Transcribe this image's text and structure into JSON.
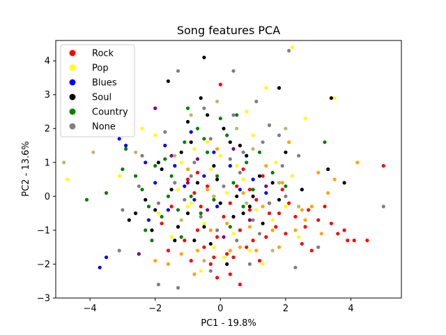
{
  "chart_data": {
    "type": "scatter",
    "title": "Song features PCA",
    "xlabel": "PC1 - 19.8%",
    "ylabel": "PC2 - 13.6%",
    "xlim": [
      -5.05,
      5.55
    ],
    "ylim": [
      -3.0,
      4.6
    ],
    "xticks": [
      "−4",
      "−2",
      "0",
      "2",
      "4"
    ],
    "xtick_values": [
      -4,
      -2,
      0,
      2,
      4
    ],
    "yticks": [
      "−3",
      "−2",
      "−1",
      "0",
      "1",
      "2",
      "3",
      "4"
    ],
    "ytick_values": [
      -3,
      -2,
      -1,
      0,
      1,
      2,
      3,
      4
    ],
    "legend_position": "top-left",
    "legend": [
      {
        "label": "Rock",
        "color": "#ff0000"
      },
      {
        "label": "Pop",
        "color": "#ffff00"
      },
      {
        "label": "Blues",
        "color": "#0000ff"
      },
      {
        "label": "Soul",
        "color": "#000000"
      },
      {
        "label": "Country",
        "color": "#008000"
      },
      {
        "label": "None",
        "color": "#808080"
      }
    ],
    "extra_colors": {
      "orange": "#ffa500",
      "purple": "#800080",
      "olive": "#bdb76b"
    },
    "series": [
      {
        "name": "Rock",
        "color": "#ff0000",
        "points": [
          [
            5.0,
            0.9
          ],
          [
            4.5,
            -1.3
          ],
          [
            4.1,
            -1.3
          ],
          [
            3.9,
            -1.3
          ],
          [
            3.8,
            -1.0
          ],
          [
            3.4,
            -0.8
          ],
          [
            3.0,
            -0.7
          ],
          [
            2.7,
            -0.4
          ],
          [
            2.5,
            -1.4
          ],
          [
            2.3,
            -0.6
          ],
          [
            2.1,
            -0.2
          ],
          [
            1.9,
            0.2
          ],
          [
            1.7,
            -0.9
          ],
          [
            1.5,
            -0.5
          ],
          [
            1.2,
            -1.9
          ],
          [
            1.0,
            -1.3
          ],
          [
            0.9,
            -0.4
          ],
          [
            0.8,
            -1.5
          ],
          [
            0.6,
            -1.0
          ],
          [
            0.4,
            -1.8
          ],
          [
            0.3,
            -2.3
          ],
          [
            0.2,
            -1.7
          ],
          [
            0.1,
            -0.6
          ],
          [
            -0.1,
            -1.2
          ],
          [
            -0.2,
            -1.8
          ],
          [
            -0.3,
            -2.0
          ],
          [
            -0.5,
            -1.5
          ],
          [
            -0.7,
            -1.0
          ],
          [
            -0.9,
            -1.9
          ],
          [
            -1.1,
            -1.3
          ],
          [
            -1.3,
            -0.9
          ],
          [
            -1.6,
            -1.6
          ],
          [
            -1.8,
            -0.8
          ],
          [
            0.0,
            3.3
          ],
          [
            0.5,
            0.3
          ],
          [
            0.7,
            0.8
          ],
          [
            0.9,
            0.2
          ],
          [
            1.1,
            -0.1
          ],
          [
            1.3,
            0.6
          ],
          [
            1.5,
            -0.2
          ],
          [
            -0.4,
            0.3
          ],
          [
            -0.6,
            -0.3
          ],
          [
            -0.8,
            0.1
          ],
          [
            -1.0,
            0.5
          ],
          [
            1.8,
            -0.5
          ],
          [
            2.0,
            -1.1
          ],
          [
            2.6,
            -0.9
          ],
          [
            3.2,
            -0.3
          ],
          [
            0.3,
            -0.2
          ],
          [
            -0.2,
            0.0
          ],
          [
            0.6,
            -2.6
          ],
          [
            -0.1,
            -2.4
          ],
          [
            2.8,
            -1.6
          ],
          [
            3.6,
            -1.1
          ],
          [
            1.4,
            -1.2
          ],
          [
            -1.5,
            -0.3
          ],
          [
            -0.7,
            0.7
          ]
        ]
      },
      {
        "name": "Pop",
        "color": "#ffff00",
        "points": [
          [
            2.2,
            4.4
          ],
          [
            3.5,
            2.9
          ],
          [
            2.6,
            2.3
          ],
          [
            1.4,
            3.2
          ],
          [
            0.8,
            2.5
          ],
          [
            -2.4,
            2.0
          ],
          [
            -2.0,
            1.8
          ],
          [
            -3.1,
            0.6
          ],
          [
            -4.7,
            0.5
          ],
          [
            -1.2,
            1.0
          ],
          [
            -0.8,
            1.4
          ],
          [
            -0.3,
            0.8
          ],
          [
            0.2,
            0.1
          ],
          [
            0.7,
            0.5
          ],
          [
            1.1,
            -0.4
          ],
          [
            1.6,
            -0.7
          ],
          [
            2.0,
            -0.3
          ],
          [
            2.4,
            -1.2
          ],
          [
            -0.5,
            -0.8
          ],
          [
            -1.0,
            -0.3
          ],
          [
            -1.5,
            -1.2
          ],
          [
            -1.9,
            -0.5
          ],
          [
            0.4,
            -1.1
          ],
          [
            0.9,
            -1.6
          ],
          [
            1.3,
            -2.0
          ],
          [
            -0.2,
            -1.5
          ],
          [
            -0.6,
            -2.2
          ],
          [
            0.1,
            -1.8
          ],
          [
            1.7,
            1.0
          ],
          [
            2.2,
            0.6
          ],
          [
            -1.3,
            0.2
          ],
          [
            -0.9,
            -0.2
          ],
          [
            0.5,
            0.9
          ],
          [
            0.0,
            1.2
          ],
          [
            -0.4,
            1.6
          ],
          [
            1.0,
            1.8
          ]
        ]
      },
      {
        "name": "Blues",
        "color": "#0000ff",
        "points": [
          [
            -3.7,
            -2.1
          ],
          [
            -3.5,
            -1.8
          ],
          [
            -3.1,
            1.7
          ],
          [
            -2.9,
            1.5
          ],
          [
            -2.3,
            1.0
          ],
          [
            -2.0,
            0.4
          ],
          [
            -1.7,
            1.5
          ],
          [
            -1.4,
            0.9
          ],
          [
            -1.1,
            0.3
          ],
          [
            -0.8,
            -0.1
          ],
          [
            -0.5,
            0.6
          ],
          [
            -0.2,
            1.3
          ],
          [
            0.3,
            0.9
          ],
          [
            0.6,
            0.2
          ],
          [
            1.0,
            0.5
          ],
          [
            -1.6,
            -0.4
          ],
          [
            -2.2,
            -0.7
          ],
          [
            -0.9,
            1.9
          ],
          [
            1.4,
            0.1
          ],
          [
            -0.1,
            -0.3
          ]
        ]
      },
      {
        "name": "Soul",
        "color": "#000000",
        "points": [
          [
            -0.5,
            4.1
          ],
          [
            -1.6,
            3.4
          ],
          [
            -0.6,
            2.9
          ],
          [
            1.8,
            3.2
          ],
          [
            3.4,
            2.9
          ],
          [
            3.8,
            0.4
          ],
          [
            3.3,
            0.8
          ],
          [
            2.5,
            0.2
          ],
          [
            1.8,
            -0.1
          ],
          [
            1.2,
            0.6
          ],
          [
            0.8,
            1.2
          ],
          [
            0.3,
            1.6
          ],
          [
            -0.2,
            0.9
          ],
          [
            -0.7,
            0.4
          ],
          [
            -1.2,
            1.3
          ],
          [
            -1.5,
            0.2
          ],
          [
            -1.8,
            0.8
          ],
          [
            -2.0,
            -0.4
          ],
          [
            -2.3,
            -0.1
          ],
          [
            -2.6,
            -0.5
          ],
          [
            -2.8,
            -0.7
          ],
          [
            -1.0,
            -0.5
          ],
          [
            -0.5,
            -0.9
          ],
          [
            0.0,
            -0.2
          ],
          [
            0.4,
            -0.6
          ],
          [
            0.9,
            -0.3
          ],
          [
            1.3,
            -0.8
          ],
          [
            -1.3,
            -0.9
          ],
          [
            -0.3,
            -1.4
          ],
          [
            0.2,
            -2.0
          ],
          [
            -0.9,
            1.6
          ],
          [
            -0.4,
            2.4
          ],
          [
            0.1,
            2.0
          ],
          [
            0.6,
            1.5
          ],
          [
            1.0,
            0.0
          ],
          [
            -1.4,
            -1.3
          ],
          [
            -2.1,
            -1.0
          ],
          [
            0.7,
            -0.5
          ],
          [
            -0.8,
            -1.3
          ],
          [
            1.6,
            0.4
          ],
          [
            -1.0,
            2.2
          ],
          [
            2.0,
            1.3
          ],
          [
            -0.1,
            0.5
          ],
          [
            0.5,
            0.0
          ],
          [
            -1.9,
            1.0
          ]
        ]
      },
      {
        "name": "Country",
        "color": "#008000",
        "points": [
          [
            -4.1,
            -0.1
          ],
          [
            -3.5,
            0.1
          ],
          [
            -3.0,
            0.8
          ],
          [
            -2.9,
            1.4
          ],
          [
            -2.6,
            0.6
          ],
          [
            -2.4,
            0.2
          ],
          [
            -2.2,
            -0.3
          ],
          [
            -2.0,
            0.9
          ],
          [
            -1.7,
            1.1
          ],
          [
            -1.5,
            0.6
          ],
          [
            -1.3,
            -0.4
          ],
          [
            -1.1,
            1.6
          ],
          [
            -0.9,
            0.0
          ],
          [
            -0.7,
            2.0
          ],
          [
            -0.4,
            1.3
          ],
          [
            -0.1,
            0.6
          ],
          [
            0.2,
            1.8
          ],
          [
            0.5,
            2.4
          ],
          [
            0.8,
            1.0
          ],
          [
            1.2,
            1.3
          ],
          [
            1.6,
            0.7
          ],
          [
            2.0,
            0.3
          ],
          [
            3.2,
            1.6
          ],
          [
            -2.3,
            -1.0
          ],
          [
            -1.8,
            -0.6
          ],
          [
            -1.2,
            -1.2
          ],
          [
            -0.6,
            -0.5
          ],
          [
            -0.2,
            -0.1
          ],
          [
            0.3,
            -0.9
          ],
          [
            0.7,
            -0.3
          ],
          [
            1.0,
            0.2
          ],
          [
            -1.0,
            2.6
          ],
          [
            -0.5,
            1.7
          ],
          [
            0.0,
            2.3
          ],
          [
            0.4,
            0.4
          ],
          [
            -2.1,
            -1.3
          ],
          [
            -1.6,
            0.0
          ]
        ]
      },
      {
        "name": "None",
        "color": "#808080",
        "points": [
          [
            5.0,
            -0.3
          ],
          [
            2.1,
            4.3
          ],
          [
            -1.3,
            3.7
          ],
          [
            0.4,
            3.7
          ],
          [
            -3.1,
            -1.6
          ],
          [
            -1.3,
            -2.7
          ],
          [
            -1.9,
            -2.6
          ],
          [
            2.3,
            -2.1
          ],
          [
            3.0,
            -1.5
          ],
          [
            2.4,
            1.2
          ],
          [
            1.8,
            1.8
          ],
          [
            1.5,
            2.1
          ],
          [
            1.1,
            2.8
          ],
          [
            0.4,
            2.4
          ],
          [
            -0.3,
            1.7
          ],
          [
            -0.8,
            1.0
          ],
          [
            -1.4,
            0.4
          ],
          [
            -1.9,
            -0.2
          ],
          [
            -2.5,
            0.3
          ],
          [
            -3.0,
            -0.4
          ],
          [
            -0.6,
            -0.6
          ],
          [
            -0.1,
            -1.0
          ],
          [
            0.5,
            -1.3
          ],
          [
            1.0,
            -0.7
          ],
          [
            1.5,
            -0.2
          ],
          [
            2.0,
            0.0
          ],
          [
            -0.5,
            2.6
          ],
          [
            0.7,
            1.3
          ],
          [
            1.3,
            1.6
          ],
          [
            -1.1,
            -0.1
          ],
          [
            0.1,
            0.3
          ],
          [
            0.6,
            0.7
          ],
          [
            1.2,
            -1.1
          ],
          [
            -0.3,
            -2.2
          ],
          [
            0.9,
            -2.0
          ],
          [
            -2.4,
            1.2
          ],
          [
            -1.7,
            1.9
          ],
          [
            1.9,
            0.9
          ],
          [
            -0.9,
            0.6
          ],
          [
            0.3,
            1.1
          ]
        ]
      },
      {
        "name": "",
        "color": "#ffa500",
        "points": [
          [
            4.2,
            1.0
          ],
          [
            3.5,
            0.5
          ],
          [
            3.0,
            0.7
          ],
          [
            2.6,
            -0.7
          ],
          [
            2.3,
            -1.0
          ],
          [
            2.8,
            -0.3
          ],
          [
            3.1,
            -1.1
          ],
          [
            1.9,
            0.4
          ],
          [
            1.6,
            -1.0
          ],
          [
            1.3,
            -0.3
          ],
          [
            0.9,
            -0.9
          ],
          [
            0.6,
            -1.5
          ],
          [
            0.2,
            -0.8
          ],
          [
            -0.3,
            -1.0
          ],
          [
            -0.7,
            -1.6
          ],
          [
            -1.2,
            -1.7
          ],
          [
            -1.6,
            -2.0
          ],
          [
            -2.0,
            -1.9
          ],
          [
            -1.0,
            0.8
          ],
          [
            -0.4,
            0.2
          ],
          [
            0.7,
            0.1
          ],
          [
            1.4,
            0.9
          ],
          [
            2.1,
            1.6
          ],
          [
            -0.1,
            1.4
          ],
          [
            0.3,
            -1.6
          ],
          [
            1.1,
            -1.6
          ],
          [
            1.8,
            -1.5
          ],
          [
            2.5,
            -0.4
          ],
          [
            3.3,
            0.1
          ],
          [
            -0.8,
            -2.3
          ]
        ]
      },
      {
        "name": "",
        "color": "#800080",
        "points": [
          [
            -2.0,
            2.6
          ],
          [
            -2.5,
            -1.7
          ],
          [
            -1.0,
            0.4
          ],
          [
            -0.4,
            -0.4
          ],
          [
            0.4,
            1.4
          ],
          [
            0.9,
            -0.7
          ],
          [
            -1.5,
            1.2
          ],
          [
            0.1,
            -1.2
          ],
          [
            1.4,
            0.3
          ],
          [
            -0.7,
            1.1
          ]
        ]
      },
      {
        "name": "",
        "color": "#bdb76b",
        "points": [
          [
            -4.8,
            1.0
          ],
          [
            -3.9,
            1.3
          ],
          [
            -2.6,
            1.3
          ],
          [
            -1.4,
            1.2
          ],
          [
            -0.9,
            2.4
          ],
          [
            0.5,
            2.0
          ],
          [
            1.0,
            1.4
          ],
          [
            1.8,
            0.4
          ],
          [
            2.4,
            -0.3
          ],
          [
            -0.2,
            0.0
          ],
          [
            0.8,
            -0.2
          ],
          [
            -1.2,
            -0.7
          ],
          [
            -0.5,
            -1.9
          ],
          [
            1.6,
            -1.6
          ],
          [
            2.0,
            2.0
          ],
          [
            -0.1,
            2.8
          ]
        ]
      }
    ]
  }
}
